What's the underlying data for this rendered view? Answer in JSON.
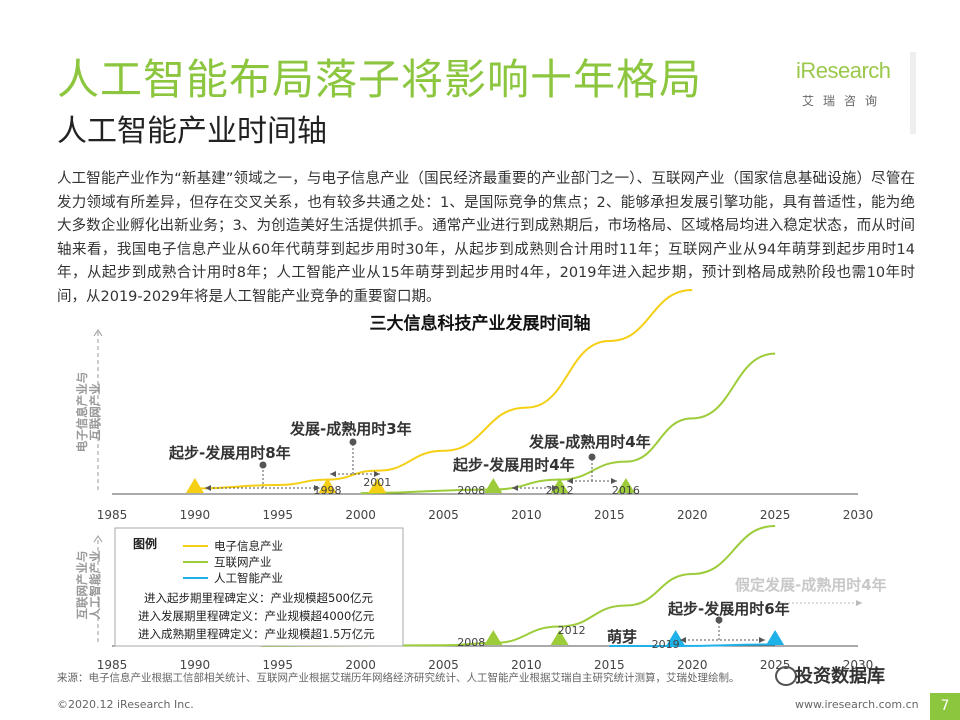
{
  "page": {
    "title": "人工智能布局落子将影响十年格局",
    "subtitle": "人工智能产业时间轴",
    "intro": "人工智能产业作为“新基建”领域之一，与电子信息产业（国民经济最重要的产业部门之一）、互联网产业（国家信息基础设施）尽管在发力领域有所差异，但存在交叉关系，也有较多共通之处：1、是国际竞争的焦点；2、能够承担发展引擎功能，具有普适性，能为绝大多数企业孵化出新业务；3、为创造美好生活提供抓手。通常产业进行到成熟期后，市场格局、区域格局均进入稳定状态，而从时间轴来看，我国电子信息产业从60年代萌芽到起步用时30年，从起步到成熟则合计用时11年；互联网产业从94年萌芽到起步用时14年，从起步到成熟合计用时8年；人工智能产业从15年萌芽到起步用时4年，2019年进入起步期，预计到格局成熟阶段也需10年时间，从2019-2029年将是人工智能产业竞争的重要窗口期。",
    "source": "来源：电子信息产业根据工信部相关统计、互联网产业根据艾瑞历年网络经济研究统计、人工智能产业根据艾瑞自主研究统计测算，艾瑞处理绘制。",
    "footer_left": "©2020.12 iResearch Inc.",
    "footer_right": "www.iresearch.com.cn",
    "page_number": "7",
    "watermark": "投资数据库"
  },
  "logo": {
    "name": "iResearch",
    "sub": "艾瑞咨询"
  },
  "colors": {
    "brand_green": "#8cc63f",
    "electronic": "#f5cf14",
    "internet": "#9dcc3a",
    "ai": "#1fb2e8"
  },
  "chart_data": {
    "type": "line",
    "title": "三大信息科技产业发展时间轴",
    "x_ticks": [
      "1985",
      "1990",
      "1995",
      "2000",
      "2005",
      "2010",
      "2015",
      "2020",
      "2025",
      "2030"
    ],
    "xlim": [
      1985,
      2030
    ],
    "panels": [
      {
        "ylabel": "电子信息产业与互联网产业",
        "series": [
          {
            "name": "电子信息产业",
            "color": "#f5cf14",
            "x": [
              1990,
              1995,
              1998,
              2001,
              2005,
              2010,
              2015,
              2020
            ],
            "y": [
              0.3,
              0.5,
              0.8,
              1.3,
              2.4,
              4.8,
              8.5,
              12.0
            ]
          },
          {
            "name": "互联网产业",
            "color": "#9dcc3a",
            "x": [
              2000,
              2008,
              2012,
              2016,
              2020,
              2025
            ],
            "y": [
              0.05,
              0.25,
              0.8,
              1.8,
              4.2,
              7.8
            ]
          }
        ],
        "milestones": [
          {
            "x": 1990,
            "color": "#f5cf14"
          },
          {
            "x": 1998,
            "color": "#f5cf14",
            "label": "1998"
          },
          {
            "x": 2001,
            "color": "#f5cf14",
            "label": "2001"
          },
          {
            "x": 2008,
            "color": "#9dcc3a",
            "label": "2008"
          },
          {
            "x": 2012,
            "color": "#9dcc3a",
            "label": "2012"
          },
          {
            "x": 2016,
            "color": "#9dcc3a",
            "label": "2016"
          }
        ],
        "annotations": [
          {
            "text": "起步-发展用时8年"
          },
          {
            "text": "发展-成熟用时3年"
          },
          {
            "text": "起步-发展用时4年"
          },
          {
            "text": "发展-成熟用时4年"
          }
        ]
      },
      {
        "ylabel": "互联网产业与人工智能产业",
        "series": [
          {
            "name": "互联网产业",
            "color": "#9dcc3a",
            "x": [
              1994,
              2005,
              2008,
              2012,
              2016,
              2020,
              2025
            ],
            "y": [
              0.0,
              0.05,
              0.2,
              1.3,
              2.7,
              4.8,
              8.0
            ]
          },
          {
            "name": "人工智能产业",
            "color": "#1fb2e8",
            "x": [
              2015,
              2019,
              2025
            ],
            "y": [
              0.0,
              0.0,
              0.1
            ]
          }
        ],
        "milestones": [
          {
            "x": 2008,
            "color": "#9dcc3a",
            "label": "2008"
          },
          {
            "x": 2012,
            "color": "#9dcc3a",
            "label": "2012"
          },
          {
            "x": 2019,
            "color": "#1fb2e8",
            "label": "2019"
          },
          {
            "x": 2025,
            "color": "#1fb2e8"
          }
        ],
        "annotations": [
          {
            "text": "萌芽"
          },
          {
            "text": "起步-发展用时6年"
          },
          {
            "text": "假定发展-成熟用时4年"
          }
        ]
      }
    ],
    "legend": {
      "title": "图例",
      "items": [
        {
          "name": "电子信息产业",
          "color": "#f5cf14"
        },
        {
          "name": "互联网产业",
          "color": "#9dcc3a"
        },
        {
          "name": "人工智能产业",
          "color": "#1fb2e8"
        }
      ],
      "definitions": [
        "进入起步期里程碑定义：产业规模超500亿元",
        "进入发展期里程碑定义：产业规模超4000亿元",
        "进入成熟期里程碑定义：产业规模超1.5万亿元"
      ]
    }
  }
}
